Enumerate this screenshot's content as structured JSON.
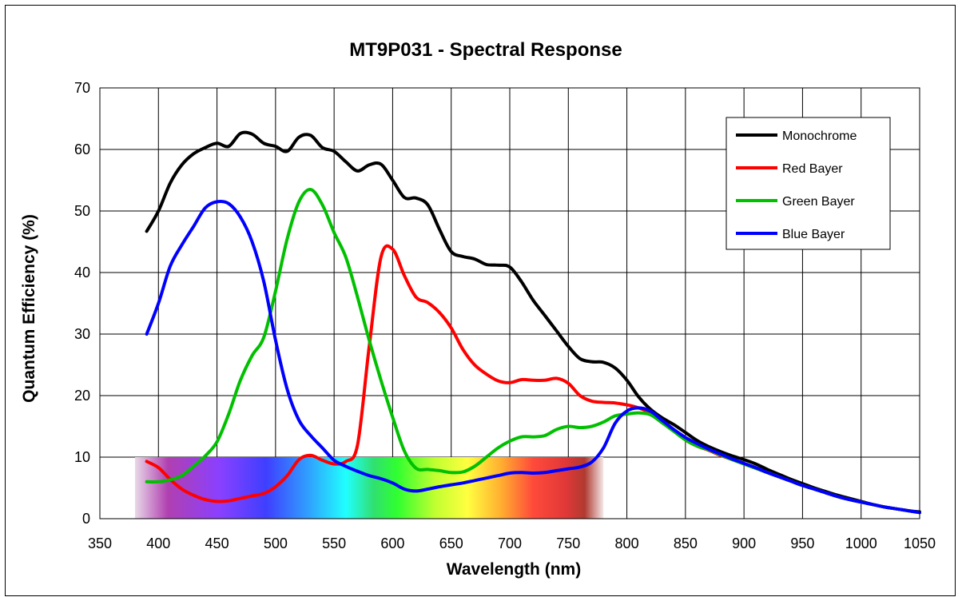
{
  "chart_data": {
    "type": "line",
    "title": "MT9P031 - Spectral Response",
    "xlabel": "Wavelength (nm)",
    "ylabel": "Quantum Efficiency (%)",
    "xlim": [
      350,
      1050
    ],
    "ylim": [
      0,
      70
    ],
    "xticks": [
      350,
      400,
      450,
      500,
      550,
      600,
      650,
      700,
      750,
      800,
      850,
      900,
      950,
      1000,
      1050
    ],
    "yticks": [
      0,
      10,
      20,
      30,
      40,
      50,
      60,
      70
    ],
    "grid": true,
    "legend_position": "top-right",
    "spectrum_band": {
      "x_start": 380,
      "x_end": 780,
      "y_top": 10
    },
    "series": [
      {
        "name": "Monochrome",
        "color": "#000000",
        "points": [
          [
            390,
            46.7
          ],
          [
            400,
            50
          ],
          [
            410,
            54.5
          ],
          [
            420,
            57.5
          ],
          [
            430,
            59.3
          ],
          [
            440,
            60.3
          ],
          [
            450,
            61
          ],
          [
            460,
            60.5
          ],
          [
            470,
            62.6
          ],
          [
            480,
            62.5
          ],
          [
            490,
            61
          ],
          [
            500,
            60.5
          ],
          [
            510,
            59.7
          ],
          [
            520,
            62
          ],
          [
            530,
            62.3
          ],
          [
            540,
            60.3
          ],
          [
            550,
            59.7
          ],
          [
            560,
            58
          ],
          [
            570,
            56.5
          ],
          [
            580,
            57.5
          ],
          [
            590,
            57.6
          ],
          [
            600,
            55
          ],
          [
            610,
            52.2
          ],
          [
            620,
            52.1
          ],
          [
            630,
            51
          ],
          [
            640,
            47
          ],
          [
            650,
            43.4
          ],
          [
            660,
            42.6
          ],
          [
            670,
            42.2
          ],
          [
            680,
            41.3
          ],
          [
            690,
            41.2
          ],
          [
            700,
            40.9
          ],
          [
            710,
            38.5
          ],
          [
            720,
            35.5
          ],
          [
            730,
            33
          ],
          [
            740,
            30.5
          ],
          [
            750,
            28
          ],
          [
            760,
            26
          ],
          [
            770,
            25.5
          ],
          [
            780,
            25.4
          ],
          [
            790,
            24.5
          ],
          [
            800,
            22.5
          ],
          [
            810,
            19.8
          ],
          [
            820,
            17.8
          ],
          [
            830,
            16.4
          ],
          [
            840,
            15.3
          ],
          [
            850,
            14
          ],
          [
            860,
            12.7
          ],
          [
            870,
            11.7
          ],
          [
            880,
            10.9
          ],
          [
            890,
            10.2
          ],
          [
            900,
            9.6
          ],
          [
            910,
            8.9
          ],
          [
            920,
            8
          ],
          [
            930,
            7.2
          ],
          [
            940,
            6.4
          ],
          [
            950,
            5.7
          ],
          [
            960,
            5
          ],
          [
            970,
            4.4
          ],
          [
            980,
            3.8
          ],
          [
            990,
            3.3
          ],
          [
            1000,
            2.8
          ],
          [
            1010,
            2.3
          ],
          [
            1020,
            1.9
          ],
          [
            1030,
            1.6
          ],
          [
            1040,
            1.3
          ],
          [
            1050,
            1.1
          ]
        ]
      },
      {
        "name": "Red Bayer",
        "color": "#ff0000",
        "points": [
          [
            390,
            9.3
          ],
          [
            400,
            8.3
          ],
          [
            410,
            6.4
          ],
          [
            420,
            4.8
          ],
          [
            430,
            3.8
          ],
          [
            440,
            3.1
          ],
          [
            450,
            2.8
          ],
          [
            460,
            2.9
          ],
          [
            470,
            3.3
          ],
          [
            480,
            3.7
          ],
          [
            490,
            4.1
          ],
          [
            500,
            5.2
          ],
          [
            510,
            7
          ],
          [
            520,
            9.6
          ],
          [
            530,
            10.3
          ],
          [
            540,
            9.5
          ],
          [
            550,
            8.9
          ],
          [
            560,
            9.3
          ],
          [
            570,
            12
          ],
          [
            580,
            28
          ],
          [
            590,
            42.5
          ],
          [
            600,
            43.8
          ],
          [
            610,
            39.5
          ],
          [
            620,
            36
          ],
          [
            630,
            35.1
          ],
          [
            640,
            33.5
          ],
          [
            650,
            31
          ],
          [
            660,
            27.5
          ],
          [
            670,
            25
          ],
          [
            680,
            23.5
          ],
          [
            690,
            22.4
          ],
          [
            700,
            22.1
          ],
          [
            710,
            22.6
          ],
          [
            720,
            22.5
          ],
          [
            730,
            22.5
          ],
          [
            740,
            22.8
          ],
          [
            750,
            22
          ],
          [
            760,
            20
          ],
          [
            770,
            19.1
          ],
          [
            780,
            18.9
          ],
          [
            790,
            18.8
          ],
          [
            800,
            18.5
          ],
          [
            810,
            18
          ],
          [
            820,
            17.2
          ],
          [
            830,
            15.9
          ],
          [
            840,
            14.3
          ],
          [
            850,
            12.8
          ],
          [
            860,
            11.8
          ],
          [
            870,
            11.1
          ],
          [
            880,
            10.3
          ],
          [
            890,
            9.6
          ],
          [
            900,
            8.9
          ],
          [
            910,
            8.2
          ],
          [
            920,
            7.5
          ],
          [
            930,
            6.8
          ],
          [
            940,
            6.1
          ],
          [
            950,
            5.4
          ],
          [
            960,
            4.8
          ],
          [
            970,
            4.2
          ],
          [
            980,
            3.6
          ],
          [
            990,
            3.1
          ],
          [
            1000,
            2.7
          ],
          [
            1010,
            2.3
          ],
          [
            1020,
            1.9
          ],
          [
            1030,
            1.6
          ],
          [
            1040,
            1.3
          ],
          [
            1050,
            1
          ]
        ]
      },
      {
        "name": "Green Bayer",
        "color": "#00c000",
        "points": [
          [
            390,
            6
          ],
          [
            400,
            6
          ],
          [
            410,
            6.3
          ],
          [
            420,
            7
          ],
          [
            430,
            8.5
          ],
          [
            440,
            10.2
          ],
          [
            450,
            12.5
          ],
          [
            460,
            17
          ],
          [
            470,
            22.5
          ],
          [
            480,
            26.5
          ],
          [
            490,
            29.5
          ],
          [
            500,
            37
          ],
          [
            510,
            45.5
          ],
          [
            520,
            51.5
          ],
          [
            530,
            53.5
          ],
          [
            540,
            51
          ],
          [
            550,
            46.5
          ],
          [
            560,
            42.5
          ],
          [
            570,
            36
          ],
          [
            580,
            29
          ],
          [
            590,
            22.5
          ],
          [
            600,
            16.5
          ],
          [
            610,
            11
          ],
          [
            620,
            8.2
          ],
          [
            630,
            8
          ],
          [
            640,
            7.8
          ],
          [
            650,
            7.5
          ],
          [
            660,
            7.6
          ],
          [
            670,
            8.5
          ],
          [
            680,
            10
          ],
          [
            690,
            11.5
          ],
          [
            700,
            12.6
          ],
          [
            710,
            13.3
          ],
          [
            720,
            13.3
          ],
          [
            730,
            13.5
          ],
          [
            740,
            14.5
          ],
          [
            750,
            15
          ],
          [
            760,
            14.8
          ],
          [
            770,
            15
          ],
          [
            780,
            15.7
          ],
          [
            790,
            16.7
          ],
          [
            800,
            17
          ],
          [
            810,
            17.2
          ],
          [
            820,
            16.9
          ],
          [
            830,
            15.6
          ],
          [
            840,
            14.2
          ],
          [
            850,
            12.8
          ],
          [
            860,
            11.8
          ],
          [
            870,
            11.2
          ],
          [
            880,
            10.4
          ],
          [
            890,
            9.6
          ],
          [
            900,
            8.9
          ],
          [
            910,
            8.2
          ],
          [
            920,
            7.5
          ],
          [
            930,
            6.8
          ],
          [
            940,
            6.1
          ],
          [
            950,
            5.4
          ],
          [
            960,
            4.8
          ],
          [
            970,
            4.2
          ],
          [
            980,
            3.6
          ],
          [
            990,
            3.1
          ],
          [
            1000,
            2.7
          ],
          [
            1010,
            2.3
          ],
          [
            1020,
            1.9
          ],
          [
            1030,
            1.6
          ],
          [
            1040,
            1.3
          ],
          [
            1050,
            1
          ]
        ]
      },
      {
        "name": "Blue Bayer",
        "color": "#0000ff",
        "points": [
          [
            390,
            30
          ],
          [
            400,
            35
          ],
          [
            410,
            41
          ],
          [
            420,
            44.5
          ],
          [
            430,
            47.5
          ],
          [
            440,
            50.5
          ],
          [
            450,
            51.5
          ],
          [
            460,
            51.2
          ],
          [
            470,
            49
          ],
          [
            480,
            45
          ],
          [
            490,
            38.5
          ],
          [
            500,
            29
          ],
          [
            510,
            21
          ],
          [
            520,
            16
          ],
          [
            530,
            13.5
          ],
          [
            540,
            11.5
          ],
          [
            550,
            9.5
          ],
          [
            560,
            8.5
          ],
          [
            570,
            7.7
          ],
          [
            580,
            7
          ],
          [
            590,
            6.5
          ],
          [
            600,
            5.8
          ],
          [
            610,
            4.8
          ],
          [
            620,
            4.5
          ],
          [
            630,
            4.8
          ],
          [
            640,
            5.2
          ],
          [
            650,
            5.5
          ],
          [
            660,
            5.8
          ],
          [
            670,
            6.2
          ],
          [
            680,
            6.6
          ],
          [
            690,
            7
          ],
          [
            700,
            7.4
          ],
          [
            710,
            7.5
          ],
          [
            720,
            7.4
          ],
          [
            730,
            7.5
          ],
          [
            740,
            7.8
          ],
          [
            750,
            8.1
          ],
          [
            760,
            8.4
          ],
          [
            770,
            9.2
          ],
          [
            780,
            11.5
          ],
          [
            790,
            15.5
          ],
          [
            800,
            17.5
          ],
          [
            810,
            18
          ],
          [
            820,
            17.5
          ],
          [
            830,
            16
          ],
          [
            840,
            14.5
          ],
          [
            850,
            13.2
          ],
          [
            860,
            12.2
          ],
          [
            870,
            11.3
          ],
          [
            880,
            10.5
          ],
          [
            890,
            9.7
          ],
          [
            900,
            9
          ],
          [
            910,
            8.3
          ],
          [
            920,
            7.5
          ],
          [
            930,
            6.8
          ],
          [
            940,
            6.1
          ],
          [
            950,
            5.4
          ],
          [
            960,
            4.8
          ],
          [
            970,
            4.2
          ],
          [
            980,
            3.6
          ],
          [
            990,
            3.1
          ],
          [
            1000,
            2.7
          ],
          [
            1010,
            2.3
          ],
          [
            1020,
            1.9
          ],
          [
            1030,
            1.6
          ],
          [
            1040,
            1.3
          ],
          [
            1050,
            1
          ]
        ]
      }
    ]
  }
}
